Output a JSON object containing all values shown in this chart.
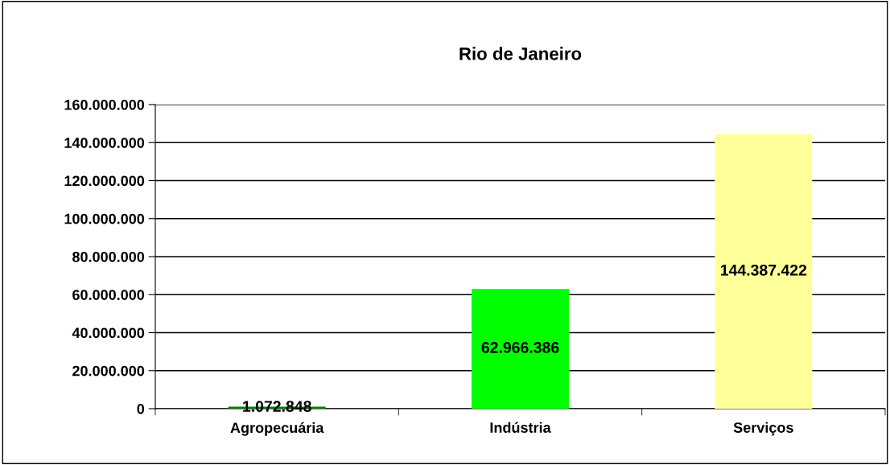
{
  "chart_data": {
    "type": "bar",
    "title": "Rio de Janeiro",
    "categories": [
      "Agropecuária",
      "Indústria",
      "Serviços"
    ],
    "values": [
      1072848,
      62966386,
      144387422
    ],
    "colors": [
      "#008000",
      "#00ff00",
      "#ffff99"
    ],
    "value_labels": [
      "1.072.848",
      "62.966.386",
      "144.387.422"
    ],
    "ylim": [
      0,
      160000000
    ],
    "yticks": [
      0,
      {
        "value": 20000000,
        "label": "20.000.000"
      },
      {
        "value": 40000000,
        "label": "40.000.000"
      },
      {
        "value": 60000000,
        "label": "60.000.000"
      },
      {
        "value": 80000000,
        "label": "80.000.000"
      },
      {
        "value": 100000000,
        "label": "100.000.000"
      },
      {
        "value": 120000000,
        "label": "120.000.000"
      },
      {
        "value": 140000000,
        "label": "140.000.000"
      },
      {
        "value": 160000000,
        "label": "160.000.000"
      }
    ],
    "grid": "y",
    "legend": false
  }
}
